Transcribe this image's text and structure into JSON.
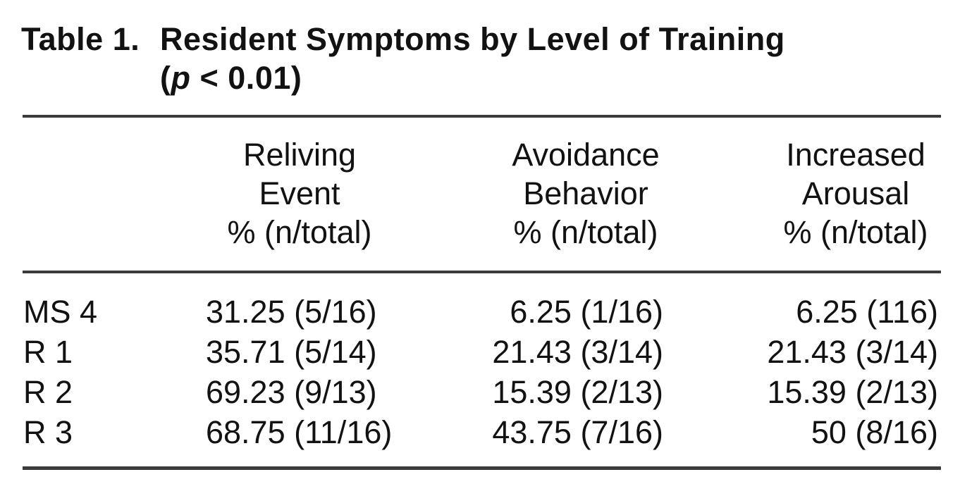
{
  "colors": {
    "background": "#ffffff",
    "text": "#121212",
    "rule": "#3b3b3b"
  },
  "title": {
    "prefix": "Table 1.",
    "main": "Resident Symptoms by Level of Training",
    "paren_open": "(",
    "p_italic": "p",
    "paren_rest": " < 0.01)"
  },
  "table": {
    "columns": [
      {
        "line1": "Reliving",
        "line2": "Event",
        "line3": "% (n/total)"
      },
      {
        "line1": "Avoidance",
        "line2": "Behavior",
        "line3": "% (n/total)"
      },
      {
        "line1": "Increased",
        "line2": "Arousal",
        "line3": "% (n/total)"
      }
    ],
    "rows": [
      {
        "label": "MS 4",
        "reliving": "31.25 (5/16)",
        "avoidance": "6.25 (1/16)",
        "arousal": "6.25 (116)"
      },
      {
        "label": "R 1",
        "reliving": "35.71 (5/14)",
        "avoidance": "21.43 (3/14)",
        "arousal": "21.43 (3/14)"
      },
      {
        "label": "R 2",
        "reliving": "69.23 (9/13)",
        "avoidance": "15.39 (2/13)",
        "arousal": "15.39 (2/13)"
      },
      {
        "label": "R 3",
        "reliving": "68.75 (11/16)",
        "avoidance": "43.75 (7/16)",
        "arousal": "50 (8/16)"
      }
    ]
  }
}
